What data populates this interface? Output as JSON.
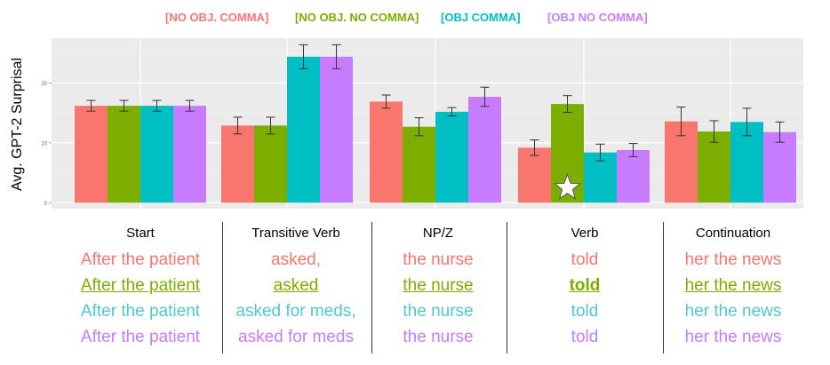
{
  "chart_data": {
    "type": "bar",
    "ylabel": "Avg. GPT-2 Surprisal",
    "ylim": [
      -1,
      27.5
    ],
    "yticks": [
      0,
      10,
      20
    ],
    "grid": true,
    "legend_position": "top",
    "categories": [
      "Start",
      "Transitive Verb",
      "NP/Z",
      "Verb",
      "Continuation"
    ],
    "series": [
      {
        "name": "[NO OBJ. COMMA]",
        "color": "#F8766D",
        "values": [
          16.2,
          12.9,
          16.9,
          9.2,
          13.6
        ],
        "errors": [
          0.9,
          1.4,
          1.1,
          1.3,
          2.4
        ]
      },
      {
        "name": "[NO OBJ. NO COMMA]",
        "color": "#7CAE00",
        "values": [
          16.2,
          12.9,
          12.7,
          16.5,
          11.9
        ],
        "errors": [
          0.9,
          1.4,
          1.5,
          1.4,
          1.8
        ]
      },
      {
        "name": "[OBJ COMMA]",
        "color": "#00BFC4",
        "values": [
          16.2,
          24.4,
          15.2,
          8.4,
          13.5
        ],
        "errors": [
          0.9,
          2.0,
          0.7,
          1.4,
          2.3
        ]
      },
      {
        "name": "[OBJ NO COMMA]",
        "color": "#C77CFF",
        "values": [
          16.2,
          24.4,
          17.7,
          8.8,
          11.8
        ],
        "errors": [
          0.9,
          2.0,
          1.6,
          1.1,
          1.7
        ]
      }
    ],
    "annotation": {
      "category": "Verb",
      "series": "[NO OBJ. NO COMMA]",
      "marker": "star"
    }
  },
  "sentences": {
    "columns": [
      {
        "header": "Start",
        "rows": [
          "After the patient",
          "After the patient",
          "After the patient",
          "After the patient"
        ]
      },
      {
        "header": "Transitive Verb",
        "rows": [
          "asked,",
          "asked",
          "asked for meds,",
          "asked for meds"
        ]
      },
      {
        "header": "NP/Z",
        "rows": [
          "the nurse",
          "the nurse",
          "the nurse",
          "the nurse"
        ]
      },
      {
        "header": "Verb",
        "rows": [
          "told",
          "told",
          "told",
          "told"
        ]
      },
      {
        "header": "Continuation",
        "rows": [
          "her the news",
          "her the news",
          "her the news",
          "her the news"
        ]
      }
    ],
    "row_colors": [
      "#F8766D",
      "#7CAE00",
      "#4FC9D0",
      "#C77CFF"
    ],
    "emphasis_row": 1,
    "bold_cell": {
      "row": 1,
      "column": 3
    }
  }
}
